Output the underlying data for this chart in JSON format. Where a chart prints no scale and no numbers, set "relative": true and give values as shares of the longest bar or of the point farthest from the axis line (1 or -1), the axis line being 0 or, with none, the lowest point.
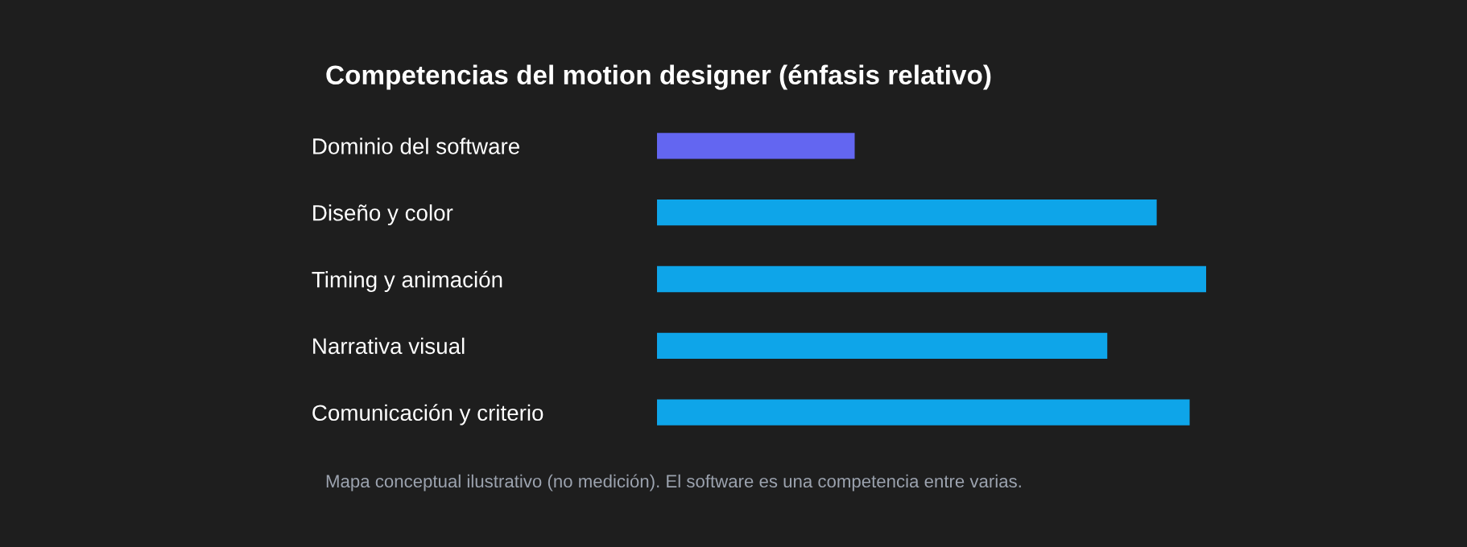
{
  "chart_data": {
    "type": "bar",
    "orientation": "horizontal",
    "relative": true,
    "title": "Competencias del motion designer (énfasis relativo)",
    "categories": [
      "Dominio del software",
      "Diseño y color",
      "Timing y animación",
      "Narrativa visual",
      "Comunicación y criterio"
    ],
    "values": [
      0.36,
      0.91,
      1,
      0.82,
      0.97
    ],
    "colors": [
      "#6366f1",
      "#0ea5e9",
      "#0ea5e9",
      "#0ea5e9",
      "#0ea5e9"
    ],
    "annotations": [
      "Mapa conceptual ilustrativo (no medición). El software es una competencia entre varias."
    ],
    "grid": false,
    "legend": false
  }
}
